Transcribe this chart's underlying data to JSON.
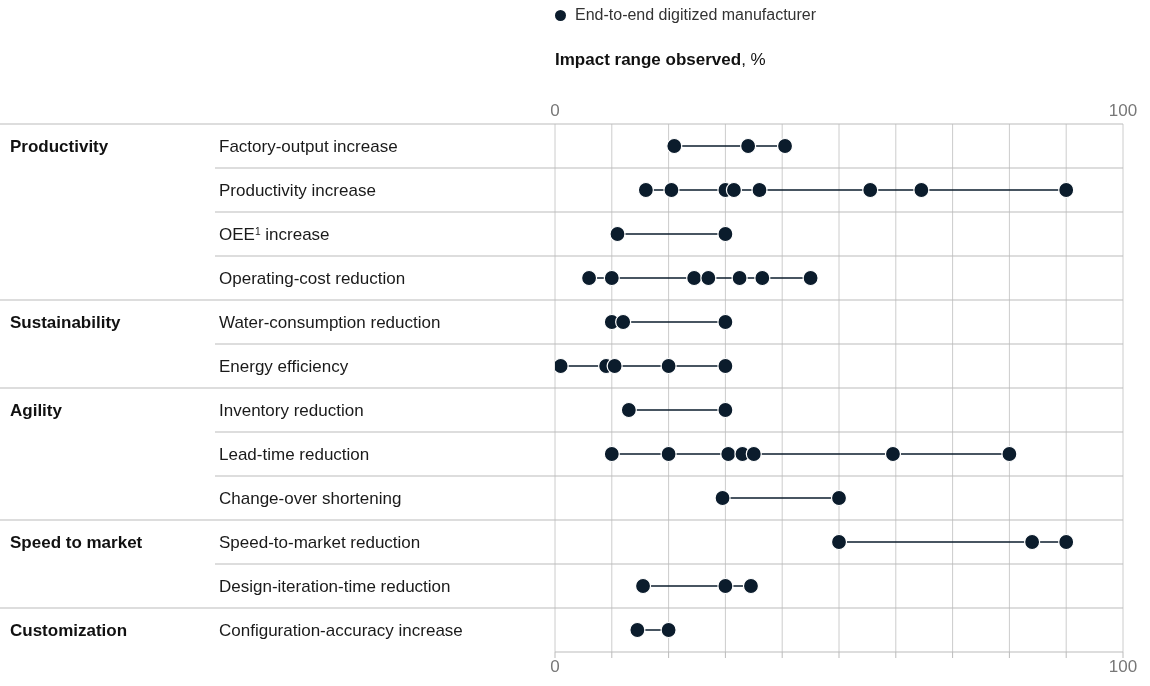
{
  "chart_data": {
    "type": "line",
    "orientation": "horizontal",
    "xlabel": "Impact range observed, %",
    "categories": [
      "Factory-output increase",
      "Productivity increase",
      "OEE$^{1}$ increase",
      "Operating-cost reduction",
      "Water-consumption reduction",
      "Energy efficiency",
      "Inventory reduction",
      "Lead-time reduction",
      "Change-over shortening",
      "Speed-to-market reduction",
      "Design-iteration-time reduction",
      "Configuration-accuracy increase"
    ],
    "y2_categories": [
      "Productivity",
      null,
      null,
      null,
      "Sustainability",
      null,
      "Agility",
      null,
      null,
      "Speed to market",
      null,
      "Customization"
    ],
    "series": [
      {
        "name": "End-to-end digitized manufacturer",
        "color": "#0b1c2c",
        "x": [
          "Factory-output increase",
          "Factory-output increase",
          "Factory-output increase",
          "Productivity increase",
          "Productivity increase",
          "Productivity increase",
          "Productivity increase",
          "Productivity increase",
          "Productivity increase",
          "Productivity increase",
          "Productivity increase",
          "OEE$^{1}$ increase",
          "OEE$^{1}$ increase",
          "Operating-cost reduction",
          "Operating-cost reduction",
          "Operating-cost reduction",
          "Operating-cost reduction",
          "Operating-cost reduction",
          "Operating-cost reduction",
          "Operating-cost reduction",
          "Water-consumption reduction",
          "Water-consumption reduction",
          "Water-consumption reduction",
          "Energy efficiency",
          "Energy efficiency",
          "Energy efficiency",
          "Energy efficiency",
          "Energy efficiency",
          "Inventory reduction",
          "Inventory reduction",
          "Lead-time reduction",
          "Lead-time reduction",
          "Lead-time reduction",
          "Lead-time reduction",
          "Lead-time reduction",
          "Lead-time reduction",
          "Lead-time reduction",
          "Change-over shortening",
          "Change-over shortening",
          "Speed-to-market reduction",
          "Speed-to-market reduction",
          "Speed-to-market reduction",
          "Design-iteration-time reduction",
          "Design-iteration-time reduction",
          "Design-iteration-time reduction",
          "Configuration-accuracy increase",
          "Configuration-accuracy increase"
        ],
        "values": [
          21,
          34,
          40.5,
          16,
          20.5,
          30,
          31.5,
          36,
          55.5,
          64.5,
          90,
          11,
          30,
          6,
          10,
          24.5,
          27,
          32.5,
          36.5,
          45,
          10,
          12,
          30,
          1,
          9,
          10.5,
          20,
          30,
          13,
          30,
          10,
          20,
          30.5,
          33,
          35,
          59.5,
          80,
          29.5,
          50,
          50,
          84,
          90,
          15.5,
          30,
          34.5,
          14.5,
          20
        ]
      }
    ],
    "xlim": [
      0,
      100
    ],
    "xticks": [
      0,
      {
        "value": 10,
        "label": null
      },
      {
        "value": 20,
        "label": null
      },
      {
        "value": 30,
        "label": null
      },
      {
        "value": 40,
        "label": null
      },
      {
        "value": 50,
        "label": null
      },
      {
        "value": 60,
        "label": null
      },
      {
        "value": 70,
        "label": null
      },
      {
        "value": 80,
        "label": null
      },
      {
        "value": 90,
        "label": null
      },
      100
    ],
    "x2lim": [
      0,
      100
    ],
    "x2ticks": [
      0,
      100
    ],
    "grid": "x",
    "legend": "top",
    "marker": "circle",
    "line_style": "solid"
  }
}
